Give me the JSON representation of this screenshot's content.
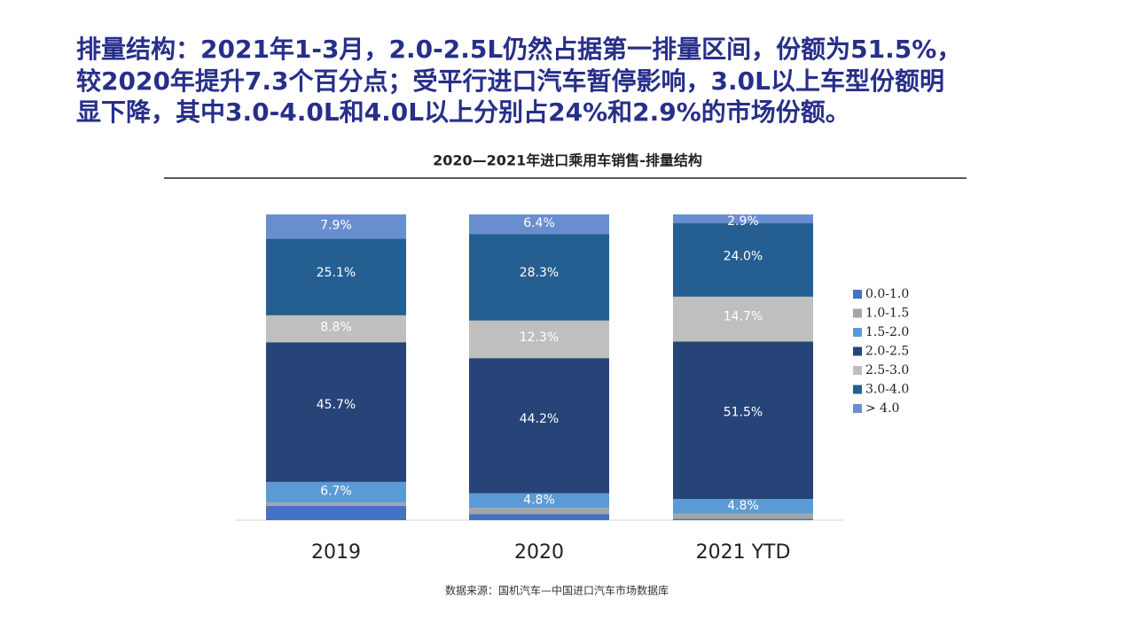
{
  "headline": [
    "排量结构：2021年1-3月，2.0-2.5L仍然占据第一排量区间，份额为51.5%，",
    "较2020年提升7.3个百分点；受平行进口汽车暂停影响，3.0L以上车型份额明",
    "显下降，其中3.0-4.0L和4.0L以上分别占24%和2.9%的市场份额。"
  ],
  "chart_data": {
    "type": "stacked_bar",
    "title": "2020—2021年进口乘用车销售-排量结构",
    "categories": [
      "2019",
      "2020",
      "2021 YTD"
    ],
    "ylim": [
      0,
      100
    ],
    "series": [
      {
        "name": "0.0-1.0",
        "color": "#4472c4",
        "values": [
          4.7,
          2.0,
          0.5
        ],
        "value_labels": [
          null,
          null,
          null
        ]
      },
      {
        "name": "1.0-1.5",
        "color": "#a5a5a5",
        "values": [
          1.1,
          2.0,
          1.6
        ],
        "value_labels": [
          null,
          null,
          null
        ]
      },
      {
        "name": "1.5-2.0",
        "color": "#5b9bd5",
        "values": [
          6.7,
          4.8,
          4.8
        ],
        "value_labels": [
          "6.7%",
          "4.8%",
          "4.8%"
        ]
      },
      {
        "name": "2.0-2.5",
        "color": "#264478",
        "values": [
          45.7,
          44.2,
          51.5
        ],
        "value_labels": [
          "45.7%",
          "44.2%",
          "51.5%"
        ]
      },
      {
        "name": "2.5-3.0",
        "color": "#bfbfbf",
        "values": [
          8.8,
          12.3,
          14.7
        ],
        "value_labels": [
          "8.8%",
          "12.3%",
          "14.7%"
        ]
      },
      {
        "name": "3.0-4.0",
        "color": "#255e91",
        "values": [
          25.1,
          28.3,
          24.0
        ],
        "value_labels": [
          "25.1%",
          "28.3%",
          "24.0%"
        ]
      },
      {
        "name": "> 4.0",
        "color": "#698ed0",
        "values": [
          7.9,
          6.4,
          2.9
        ],
        "value_labels": [
          "7.9%",
          "6.4%",
          "2.9%"
        ]
      }
    ],
    "source": "数据来源：国机汽车—中国进口汽车市场数据库"
  }
}
